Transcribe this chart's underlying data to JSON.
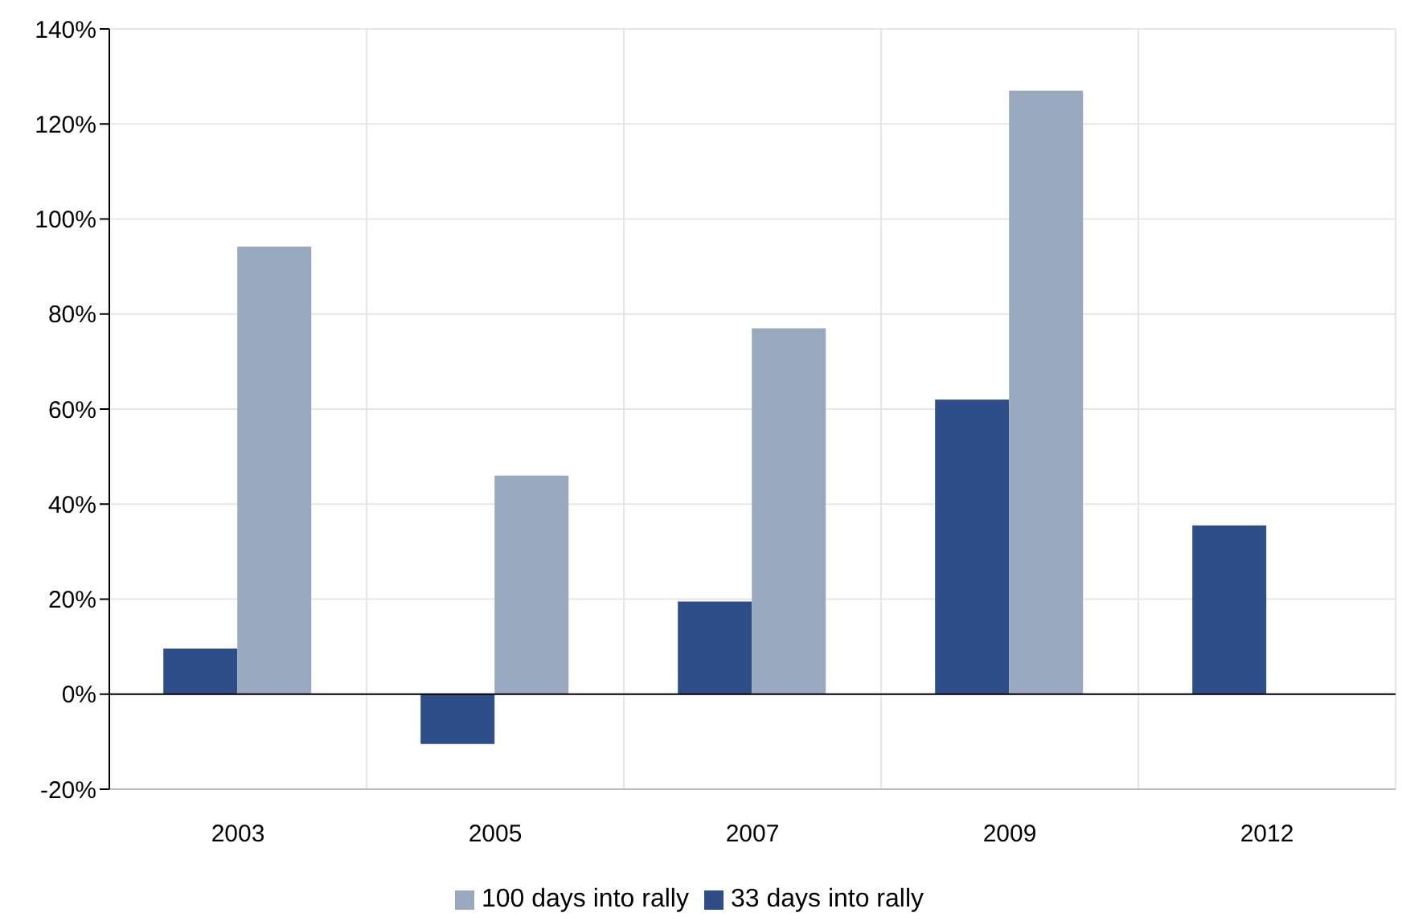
{
  "chart_data": {
    "type": "bar",
    "categories": [
      "2003",
      "2005",
      "2007",
      "2009",
      "2012"
    ],
    "series": [
      {
        "name": "33 days into rally",
        "color": "#2e4e8a",
        "values": [
          9.6,
          -10.5,
          19.5,
          62,
          35.5
        ]
      },
      {
        "name": "100 days into rally",
        "color": "#98a8bf",
        "values": [
          94.2,
          46,
          77,
          127,
          null
        ]
      }
    ],
    "ylim": [
      -20,
      140
    ],
    "yticks": [
      {
        "value": -20,
        "label": "-20%"
      },
      {
        "value": 0,
        "label": "0%"
      },
      {
        "value": 20,
        "label": "20%"
      },
      {
        "value": 40,
        "label": "40%"
      },
      {
        "value": 60,
        "label": "60%"
      },
      {
        "value": 80,
        "label": "80%"
      },
      {
        "value": 100,
        "label": "100%"
      },
      {
        "value": 120,
        "label": "120%"
      },
      {
        "value": 140,
        "label": "140%"
      }
    ],
    "grid": true,
    "legend": "bottom"
  }
}
